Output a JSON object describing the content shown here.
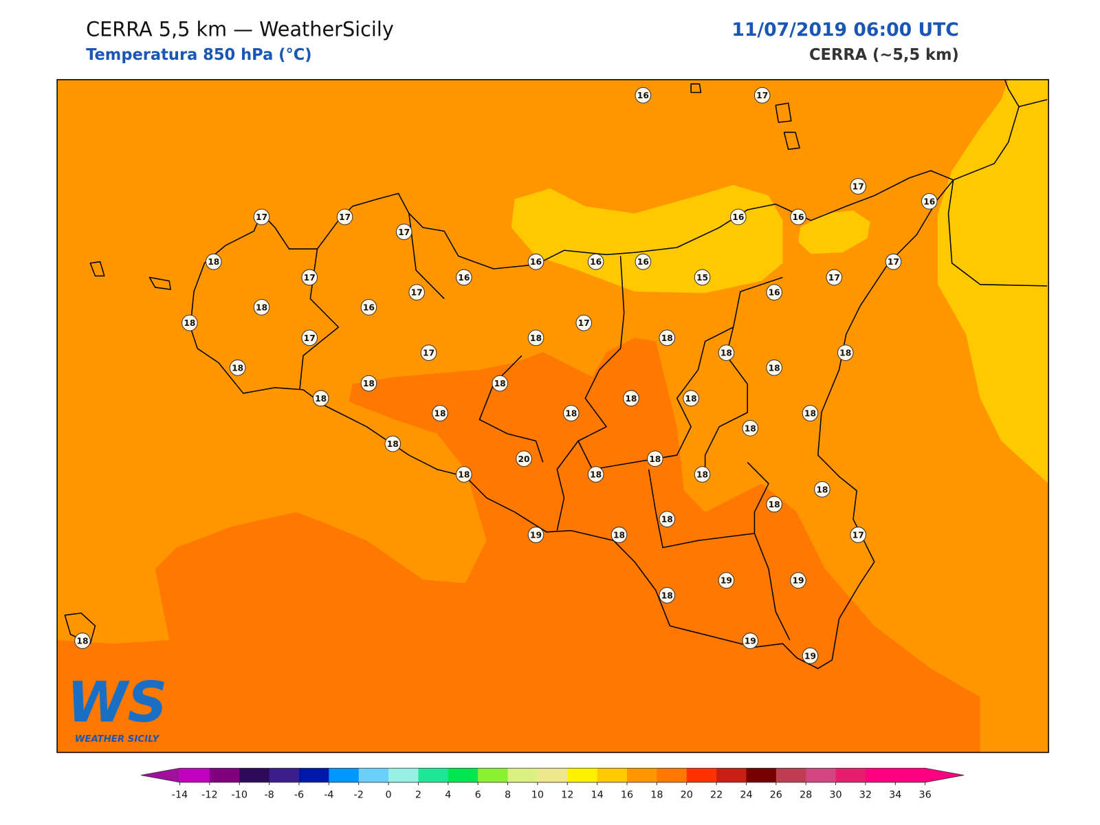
{
  "header": {
    "title": "CERRA 5,5 km — WeatherSicily",
    "subtitle": "Temperatura 850 hPa (°C)",
    "datetime": "11/07/2019 06:00 UTC",
    "model": "CERRA (~5,5 km)"
  },
  "stations": [
    16,
    17,
    17,
    16,
    17,
    17,
    17,
    16,
    16,
    18,
    16,
    16,
    16,
    17,
    17,
    16,
    15,
    17,
    17,
    16,
    18,
    16,
    18,
    17,
    17,
    18,
    18,
    17,
    18,
    18,
    18,
    18,
    18,
    18,
    18,
    18,
    18,
    18,
    18,
    18,
    18,
    18,
    20,
    18,
    18,
    18,
    18,
    18,
    18,
    18,
    19,
    18,
    17,
    19,
    19,
    18,
    18,
    19,
    19
  ],
  "colorbar": {
    "ticks": [
      -14,
      -12,
      -10,
      -8,
      -6,
      -4,
      -2,
      0,
      2,
      4,
      6,
      8,
      10,
      12,
      14,
      16,
      18,
      20,
      22,
      24,
      26,
      28,
      30,
      32,
      34,
      36
    ],
    "colors": [
      "#c000c0",
      "#800080",
      "#2d0a5a",
      "#3a1f8a",
      "#0018a8",
      "#0096ff",
      "#6ad0f8",
      "#96f0e6",
      "#1ee696",
      "#00e650",
      "#8cf032",
      "#dcf082",
      "#f0e68c",
      "#fff000",
      "#ffc800",
      "#ff9600",
      "#ff7800",
      "#ff3200",
      "#c81e14",
      "#780000",
      "#be3c50",
      "#d24682",
      "#e61e6e",
      "#ff0080",
      "#ff0080"
    ],
    "under": "#a0109c",
    "over": "#ff0080"
  },
  "logo": {
    "mark": "WS",
    "name": "WEATHER SICILY"
  }
}
